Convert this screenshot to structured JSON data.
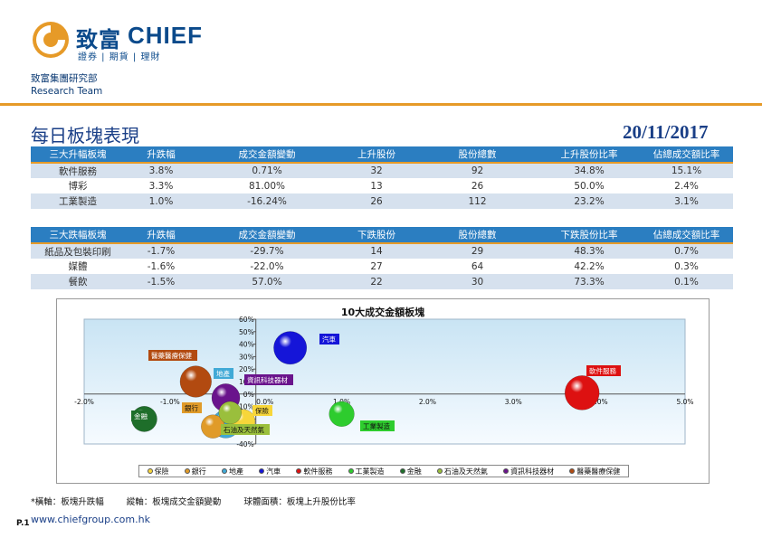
{
  "brand": {
    "name_cn": "致富",
    "name_en": "CHIEF",
    "tagline": "證券 | 期貨 | 理財",
    "dept_cn": "致富集團研究部",
    "dept_en": "Research Team",
    "colors": {
      "navy": "#0b4a8b",
      "orange": "#e69a28",
      "header_blue": "#2b7ec1",
      "stripe": "#d6e1ee"
    }
  },
  "page": {
    "title": "每日板塊表現",
    "date": "20/11/2017",
    "footnote": [
      "*橫軸：板塊升跌幅",
      "縱軸：板塊成交金額變動",
      "球體面積：板塊上升股份比率"
    ],
    "url": "www.chiefgroup.com.hk",
    "page_number": "P.1"
  },
  "table_up": {
    "headers": [
      "三大升幅板塊",
      "升跌幅",
      "成交金額變動",
      "上升股份",
      "股份總數",
      "上升股份比率",
      "佔總成交額比率"
    ],
    "rows": [
      [
        "軟件服務",
        "3.8%",
        "0.71%",
        "32",
        "92",
        "34.8%",
        "15.1%"
      ],
      [
        "博彩",
        "3.3%",
        "81.00%",
        "13",
        "26",
        "50.0%",
        "2.4%"
      ],
      [
        "工業製造",
        "1.0%",
        "-16.24%",
        "26",
        "112",
        "23.2%",
        "3.1%"
      ]
    ]
  },
  "table_down": {
    "headers": [
      "三大跌幅板塊",
      "升跌幅",
      "成交金額變動",
      "下跌股份",
      "股份總數",
      "下跌股份比率",
      "佔總成交額比率"
    ],
    "rows": [
      [
        "紙品及包裝印刷",
        "-1.7%",
        "-29.7%",
        "14",
        "29",
        "48.3%",
        "0.7%"
      ],
      [
        "媒體",
        "-1.6%",
        "-22.0%",
        "27",
        "64",
        "42.2%",
        "0.3%"
      ],
      [
        "餐飲",
        "-1.5%",
        "57.0%",
        "22",
        "30",
        "73.3%",
        "0.1%"
      ]
    ]
  },
  "chart_data": {
    "type": "scatter",
    "title": "10大成交金額板塊",
    "xlim": [
      -2.0,
      5.0
    ],
    "ylim": [
      -40,
      60
    ],
    "x_ticks": [
      "-2.0%",
      "-1.0%",
      "0.0%",
      "1.0%",
      "2.0%",
      "3.0%",
      "4.0%",
      "5.0%"
    ],
    "y_ticks": [
      "60%",
      "50%",
      "40%",
      "30%",
      "20%",
      "10%",
      "0%",
      "-10%",
      "-20%",
      "-30%",
      "-40%"
    ],
    "grid": false,
    "legend_position": "bottom",
    "series": [
      {
        "name": "保險",
        "x": -0.15,
        "y": -22,
        "size": 30,
        "color": "#f7d63a"
      },
      {
        "name": "銀行",
        "x": -0.5,
        "y": -26,
        "size": 28,
        "color": "#e09b29"
      },
      {
        "name": "地產",
        "x": -0.35,
        "y": -24,
        "size": 40,
        "color": "#41a9d6"
      },
      {
        "name": "汽車",
        "x": 0.4,
        "y": 37,
        "size": 55,
        "color": "#1515d8"
      },
      {
        "name": "軟件服務",
        "x": 3.8,
        "y": 1,
        "size": 60,
        "color": "#dd1111"
      },
      {
        "name": "工業製造",
        "x": 1.0,
        "y": -16,
        "size": 32,
        "color": "#2ecc2e"
      },
      {
        "name": "金融",
        "x": -1.3,
        "y": -20,
        "size": 33,
        "color": "#1e6e2a"
      },
      {
        "name": "石油及天然氣",
        "x": -0.3,
        "y": -15,
        "size": 26,
        "color": "#9abf3c"
      },
      {
        "name": "資訊科技器材",
        "x": -0.35,
        "y": -3,
        "size": 40,
        "color": "#6a148c"
      },
      {
        "name": "醫藥醫療保健",
        "x": -0.7,
        "y": 10,
        "size": 50,
        "color": "#b24a10"
      }
    ],
    "labels": [
      {
        "name": "汽車",
        "bg": "#1515d8",
        "fg": "#ffffff"
      },
      {
        "name": "醫藥醫療保健",
        "bg": "#b24a10",
        "fg": "#ffffff"
      },
      {
        "name": "地產",
        "bg": "#41a9d6",
        "fg": "#ffffff"
      },
      {
        "name": "資訊科技器材",
        "bg": "#6a148c",
        "fg": "#ffffff"
      },
      {
        "name": "軟件服務",
        "bg": "#dd1111",
        "fg": "#ffffff"
      },
      {
        "name": "金融",
        "bg": "#1e6e2a",
        "fg": "#ffffff"
      },
      {
        "name": "銀行",
        "bg": "#e09b29",
        "fg": "#111111"
      },
      {
        "name": "保險",
        "bg": "#f7d63a",
        "fg": "#111111"
      },
      {
        "name": "工業製造",
        "bg": "#2ecc2e",
        "fg": "#111111"
      },
      {
        "name": "石油及天然氣",
        "bg": "#9abf3c",
        "fg": "#111111"
      }
    ]
  }
}
